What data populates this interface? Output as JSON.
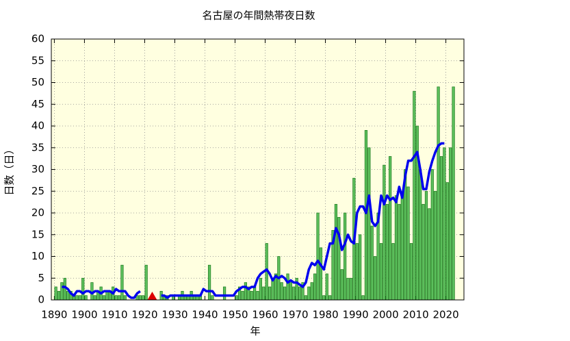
{
  "chart_data": {
    "type": "bar-line",
    "title": "名古屋の年間熱帯夜日数",
    "xlabel": "年",
    "ylabel": "日数（日）",
    "x": [
      1890,
      1891,
      1892,
      1893,
      1894,
      1895,
      1896,
      1897,
      1898,
      1899,
      1900,
      1901,
      1902,
      1903,
      1904,
      1905,
      1906,
      1907,
      1908,
      1909,
      1910,
      1911,
      1912,
      1913,
      1914,
      1915,
      1916,
      1917,
      1918,
      1919,
      1920,
      1921,
      1922,
      1923,
      1924,
      1925,
      1926,
      1927,
      1928,
      1929,
      1930,
      1931,
      1932,
      1933,
      1934,
      1935,
      1936,
      1937,
      1938,
      1939,
      1940,
      1941,
      1942,
      1943,
      1944,
      1945,
      1946,
      1947,
      1948,
      1949,
      1950,
      1951,
      1952,
      1953,
      1954,
      1955,
      1956,
      1957,
      1958,
      1959,
      1960,
      1961,
      1962,
      1963,
      1964,
      1965,
      1966,
      1967,
      1968,
      1969,
      1970,
      1971,
      1972,
      1973,
      1974,
      1975,
      1976,
      1977,
      1978,
      1979,
      1980,
      1981,
      1982,
      1983,
      1984,
      1985,
      1986,
      1987,
      1988,
      1989,
      1990,
      1991,
      1992,
      1993,
      1994,
      1995,
      1996,
      1997,
      1998,
      1999,
      2000,
      2001,
      2002,
      2003,
      2004,
      2005,
      2006,
      2007,
      2008,
      2009,
      2010,
      2011,
      2012,
      2013,
      2014,
      2015,
      2016,
      2017,
      2018,
      2019,
      2020,
      2021,
      2022
    ],
    "series": [
      {
        "type": "bar",
        "color": "#5cbf5c",
        "edge": "#1f7a1f",
        "values": [
          3,
          2,
          4,
          5,
          2,
          2,
          1,
          1,
          1,
          5,
          1,
          0,
          4,
          1,
          2,
          3,
          1,
          2,
          2,
          3,
          1,
          1,
          8,
          1,
          0,
          0,
          0,
          1,
          1,
          1,
          8,
          0,
          null,
          0,
          0,
          2,
          1,
          1,
          0,
          1,
          0,
          1,
          2,
          1,
          1,
          2,
          1,
          1,
          1,
          0,
          0,
          8,
          1,
          0,
          0,
          0,
          3,
          0,
          0,
          0,
          1,
          3,
          2,
          4,
          3,
          2,
          3,
          2,
          5,
          3,
          13,
          3,
          5,
          6,
          10,
          4,
          3,
          6,
          4,
          3,
          5,
          3,
          4,
          1,
          3,
          4,
          6,
          20,
          12,
          1,
          6,
          1,
          16,
          22,
          19,
          7,
          20,
          5,
          5,
          28,
          13,
          15,
          1,
          39,
          35,
          17,
          10,
          20,
          13,
          31,
          22,
          33,
          13,
          24,
          22,
          24,
          30,
          26,
          13,
          48,
          40,
          30,
          22,
          25,
          21,
          30,
          25,
          49,
          33,
          35,
          27,
          35,
          49
        ]
      },
      {
        "type": "line",
        "color": "#0000ee",
        "values": [
          null,
          null,
          3,
          3,
          2.5,
          1.5,
          1,
          2,
          2,
          1.5,
          2,
          2,
          1.5,
          2,
          2,
          1.5,
          2,
          2,
          2,
          1.5,
          2.5,
          2,
          2,
          2,
          1,
          0.5,
          0.5,
          1.5,
          2,
          null,
          null,
          null,
          null,
          null,
          null,
          1,
          1,
          0.5,
          1,
          1,
          1,
          1,
          1,
          1,
          1,
          1,
          1,
          1,
          1,
          2.5,
          2,
          2,
          2,
          1,
          1,
          1,
          1,
          1,
          1,
          1,
          2,
          2.5,
          3,
          3,
          2.5,
          3,
          3,
          5,
          6,
          6.5,
          7,
          6,
          4.5,
          5.5,
          5,
          5.5,
          5,
          4,
          4.5,
          4,
          4,
          3.5,
          3,
          4,
          7,
          8.5,
          8,
          9,
          8,
          7,
          10,
          13,
          13,
          16.5,
          15,
          11.5,
          13,
          15,
          13.5,
          13,
          20,
          21.5,
          21.5,
          20,
          24,
          18,
          17,
          18,
          24,
          22,
          24,
          23,
          23.5,
          22.5,
          26,
          23.5,
          28.5,
          32,
          32,
          33,
          34,
          30,
          25.5,
          25.5,
          29.5,
          32,
          34,
          35.5,
          36,
          36,
          null,
          null,
          null
        ]
      }
    ],
    "missing_years": [
      1922
    ],
    "missing_color": "#dd0000",
    "xlim": [
      1889,
      2026
    ],
    "xticks": [
      1890,
      1900,
      1910,
      1920,
      1930,
      1940,
      1950,
      1960,
      1970,
      1980,
      1990,
      2000,
      2010,
      2020
    ],
    "ylim": [
      0,
      60
    ],
    "yticks": [
      0,
      5,
      10,
      15,
      20,
      25,
      30,
      35,
      40,
      45,
      50,
      55,
      60
    ],
    "grid": true,
    "background": "#ffffe0"
  }
}
